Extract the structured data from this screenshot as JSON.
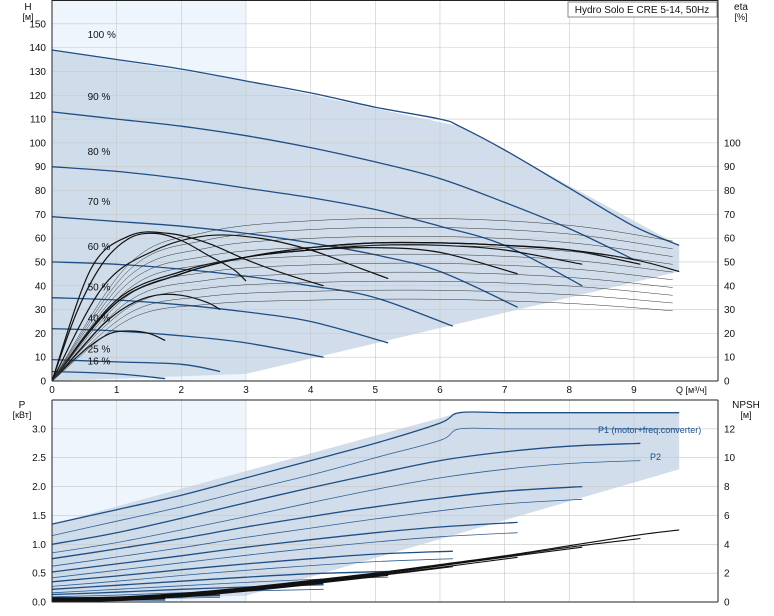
{
  "chart_data": [
    {
      "type": "line",
      "title": "Hydro Solo E CRE 5-14, 50Hz",
      "ylabel": "H",
      "yunit": "[м]",
      "xlabel": "Q [м³/ч]",
      "y2label": "eta",
      "y2unit": "[%]",
      "xlim": [
        0,
        10.3
      ],
      "ylim": [
        0,
        160
      ],
      "xticks": [
        0,
        1,
        2,
        3,
        4,
        5,
        6,
        7,
        8,
        9
      ],
      "yticks": [
        0,
        10,
        20,
        30,
        40,
        50,
        60,
        70,
        80,
        90,
        100,
        110,
        120,
        130,
        140,
        150
      ],
      "y2ticks": [
        0,
        10,
        20,
        30,
        40,
        50,
        60,
        70,
        80,
        90,
        100
      ],
      "grid": true,
      "speed_labels": [
        "100 %",
        "90 %",
        "80 %",
        "70 %",
        "60 %",
        "50 %",
        "40 %",
        "25 %",
        "16 %"
      ],
      "head_curves": [
        {
          "speed": "100 %",
          "x": [
            0,
            1,
            2,
            3,
            4,
            5,
            6,
            6.3,
            7,
            8,
            9,
            9.7
          ],
          "y": [
            139,
            135,
            131,
            126,
            121,
            115,
            110,
            107,
            97,
            81,
            65,
            57
          ]
        },
        {
          "speed": "90 %",
          "x": [
            0,
            1,
            2,
            3,
            4,
            5,
            6,
            7,
            8,
            9
          ],
          "y": [
            113,
            110,
            107,
            103,
            98,
            92,
            85,
            75,
            64,
            51
          ]
        },
        {
          "speed": "80 %",
          "x": [
            0,
            1,
            2,
            3,
            4,
            5,
            6,
            7,
            8.2
          ],
          "y": [
            90,
            88,
            85,
            81,
            77,
            72,
            65,
            57,
            40
          ]
        },
        {
          "speed": "70 %",
          "x": [
            0,
            1,
            2,
            3,
            4,
            5,
            6,
            7.2
          ],
          "y": [
            69,
            67,
            65,
            62,
            58,
            53,
            46,
            31
          ]
        },
        {
          "speed": "60 %",
          "x": [
            0,
            1,
            2,
            3,
            4,
            5,
            6.2
          ],
          "y": [
            50,
            49,
            47,
            44,
            40,
            35,
            23
          ]
        },
        {
          "speed": "50 %",
          "x": [
            0,
            1,
            2,
            3,
            4,
            5.2
          ],
          "y": [
            35,
            34,
            32,
            29,
            25,
            16
          ]
        },
        {
          "speed": "40 %",
          "x": [
            0,
            1,
            2,
            3,
            4.2
          ],
          "y": [
            22,
            21,
            19,
            16,
            10
          ]
        },
        {
          "speed": "25 %",
          "x": [
            0,
            1,
            2,
            2.6
          ],
          "y": [
            9,
            8,
            7,
            4
          ]
        },
        {
          "speed": "16 %",
          "x": [
            0,
            1,
            1.75
          ],
          "y": [
            4,
            3,
            1
          ]
        }
      ],
      "efficiency_curves": [
        {
          "x": [
            0,
            1,
            2,
            3,
            4,
            5,
            6,
            7,
            8,
            9,
            9.7
          ],
          "y": [
            0,
            33,
            45,
            52,
            56,
            58,
            58,
            57,
            55,
            51,
            46
          ]
        },
        {
          "x": [
            0,
            1,
            2,
            3,
            4,
            5,
            6,
            7,
            8,
            9.1
          ],
          "y": [
            0,
            33,
            45,
            52,
            56,
            58,
            58,
            57,
            55,
            49
          ]
        },
        {
          "x": [
            0,
            1,
            2,
            3,
            4,
            5,
            6,
            7,
            8.2
          ],
          "y": [
            0,
            33,
            45,
            52,
            55,
            57,
            57,
            55,
            49
          ]
        },
        {
          "x": [
            0,
            1,
            2,
            3,
            4,
            5,
            6,
            7.2
          ],
          "y": [
            0,
            34,
            46,
            52,
            55,
            56,
            54,
            45
          ]
        },
        {
          "x": [
            0,
            0.8,
            1.6,
            2.4,
            3.2,
            4,
            4.8,
            5.2
          ],
          "y": [
            0,
            40,
            55,
            61,
            60,
            55,
            47,
            43
          ]
        },
        {
          "x": [
            0,
            0.6,
            1.2,
            1.8,
            2.4,
            3,
            3.6,
            4.2
          ],
          "y": [
            0,
            47,
            61,
            62,
            58,
            51,
            45,
            40
          ]
        },
        {
          "x": [
            0,
            0.4,
            0.8,
            1.2,
            1.6,
            2.0,
            2.4,
            2.8,
            3.0
          ],
          "y": [
            0,
            30,
            50,
            60,
            62,
            59,
            53,
            47,
            42
          ]
        },
        {
          "x": [
            0,
            0.4,
            0.8,
            1.2,
            1.6,
            2.0,
            2.4,
            2.6
          ],
          "y": [
            0,
            12,
            24,
            32,
            36,
            36,
            33,
            30
          ]
        },
        {
          "x": [
            0,
            0.3,
            0.6,
            0.9,
            1.2,
            1.5,
            1.75
          ],
          "y": [
            0,
            8,
            15,
            20,
            21,
            20,
            17
          ]
        }
      ],
      "envelope": {
        "x": [
          0,
          3,
          6.3,
          9.7,
          9.7,
          3,
          0
        ],
        "y": [
          139,
          126,
          107,
          57,
          46,
          3,
          0
        ]
      }
    },
    {
      "type": "line",
      "ylabel": "P",
      "yunit": "[кВт]",
      "y2label": "NPSH",
      "y2unit": "[м]",
      "xlim": [
        0,
        10.3
      ],
      "ylim": [
        0,
        3.5
      ],
      "yticks": [
        0,
        0.5,
        1.0,
        1.5,
        2.0,
        2.5,
        3.0
      ],
      "ytick_labels": [
        "0.0",
        "0.5",
        "1.0",
        "1.5",
        "2.0",
        "2.5",
        "3.0"
      ],
      "y2lim": [
        0,
        14
      ],
      "y2ticks": [
        0,
        2,
        4,
        6,
        8,
        10,
        12
      ],
      "grid": true,
      "annotations": [
        "P1 (motor+freq.converter)",
        "P2"
      ],
      "power_curves_p1": [
        {
          "x": [
            0,
            1,
            2,
            3,
            4,
            5,
            6,
            6.3,
            7,
            8,
            9,
            9.7
          ],
          "y": [
            1.35,
            1.6,
            1.85,
            2.15,
            2.45,
            2.75,
            3.1,
            3.28,
            3.28,
            3.28,
            3.28,
            3.28
          ]
        },
        {
          "x": [
            0,
            1,
            2,
            3,
            4,
            5,
            6,
            7,
            8,
            9.1
          ],
          "y": [
            1.0,
            1.2,
            1.45,
            1.72,
            1.98,
            2.22,
            2.45,
            2.6,
            2.7,
            2.75
          ]
        },
        {
          "x": [
            0,
            1,
            2,
            3,
            4,
            5,
            6,
            7,
            8.2
          ],
          "y": [
            0.75,
            0.92,
            1.1,
            1.3,
            1.48,
            1.65,
            1.8,
            1.92,
            2.0
          ]
        },
        {
          "x": [
            0,
            1,
            2,
            3,
            4,
            5,
            6,
            7.2
          ],
          "y": [
            0.52,
            0.66,
            0.8,
            0.95,
            1.08,
            1.2,
            1.3,
            1.38
          ]
        },
        {
          "x": [
            0,
            1,
            2,
            3,
            4,
            5,
            6.2
          ],
          "y": [
            0.35,
            0.45,
            0.56,
            0.66,
            0.75,
            0.83,
            0.88
          ]
        },
        {
          "x": [
            0,
            1,
            2,
            3,
            4,
            5.2
          ],
          "y": [
            0.22,
            0.29,
            0.36,
            0.43,
            0.49,
            0.53
          ]
        },
        {
          "x": [
            0,
            1,
            2,
            3,
            4.2
          ],
          "y": [
            0.13,
            0.17,
            0.22,
            0.26,
            0.3
          ]
        },
        {
          "x": [
            0,
            1,
            2,
            2.6
          ],
          "y": [
            0.06,
            0.08,
            0.1,
            0.11
          ]
        },
        {
          "x": [
            0,
            1,
            1.75
          ],
          "y": [
            0.03,
            0.04,
            0.05
          ]
        }
      ],
      "power_curves_p2": [
        {
          "x": [
            0,
            1,
            2,
            3,
            4,
            5,
            6,
            6.3,
            7,
            8,
            9,
            9.7
          ],
          "y": [
            1.15,
            1.4,
            1.65,
            1.93,
            2.2,
            2.5,
            2.8,
            3.0,
            3.0,
            3.0,
            3.0,
            3.0
          ]
        },
        {
          "x": [
            0,
            1,
            2,
            3,
            4,
            5,
            6,
            7,
            8,
            9.1
          ],
          "y": [
            0.85,
            1.03,
            1.25,
            1.48,
            1.72,
            1.95,
            2.15,
            2.3,
            2.4,
            2.45
          ]
        },
        {
          "x": [
            0,
            1,
            2,
            3,
            4,
            5,
            6,
            7,
            8.2
          ],
          "y": [
            0.62,
            0.78,
            0.94,
            1.12,
            1.28,
            1.44,
            1.58,
            1.7,
            1.78
          ]
        },
        {
          "x": [
            0,
            1,
            2,
            3,
            4,
            5,
            6,
            7.2
          ],
          "y": [
            0.42,
            0.55,
            0.68,
            0.81,
            0.93,
            1.04,
            1.13,
            1.2
          ]
        },
        {
          "x": [
            0,
            1,
            2,
            3,
            4,
            5,
            6.2
          ],
          "y": [
            0.27,
            0.36,
            0.46,
            0.55,
            0.63,
            0.7,
            0.75
          ]
        },
        {
          "x": [
            0,
            1,
            2,
            3,
            4,
            5.2
          ],
          "y": [
            0.16,
            0.22,
            0.28,
            0.34,
            0.39,
            0.43
          ]
        },
        {
          "x": [
            0,
            1,
            2,
            3,
            4.2
          ],
          "y": [
            0.09,
            0.12,
            0.16,
            0.19,
            0.22
          ]
        },
        {
          "x": [
            0,
            1,
            2,
            2.6
          ],
          "y": [
            0.04,
            0.06,
            0.07,
            0.08
          ]
        },
        {
          "x": [
            0,
            1,
            1.75
          ],
          "y": [
            0.02,
            0.03,
            0.03
          ]
        }
      ],
      "npsh_curves": [
        {
          "x": [
            0,
            1,
            2,
            3,
            4,
            5,
            6,
            7,
            8,
            9,
            9.7
          ],
          "y": [
            0.3,
            0.35,
            0.6,
            1.0,
            1.5,
            2.0,
            2.6,
            3.2,
            3.9,
            4.6,
            5.0
          ]
        },
        {
          "x": [
            0,
            1,
            2,
            3,
            4,
            5,
            6,
            7,
            8,
            9.1
          ],
          "y": [
            0.25,
            0.3,
            0.55,
            0.95,
            1.45,
            1.95,
            2.55,
            3.15,
            3.8,
            4.4
          ]
        },
        {
          "x": [
            0,
            1,
            2,
            3,
            4,
            5,
            6,
            7,
            8.2
          ],
          "y": [
            0.2,
            0.28,
            0.5,
            0.9,
            1.4,
            1.9,
            2.5,
            3.1,
            3.8
          ]
        },
        {
          "x": [
            0,
            1,
            2,
            3,
            4,
            5,
            6,
            7.2
          ],
          "y": [
            0.15,
            0.25,
            0.45,
            0.85,
            1.35,
            1.85,
            2.4,
            3.1
          ]
        },
        {
          "x": [
            0,
            1,
            2,
            3,
            4,
            5,
            6.2
          ],
          "y": [
            0.1,
            0.22,
            0.42,
            0.8,
            1.3,
            1.8,
            2.45
          ]
        },
        {
          "x": [
            0,
            1,
            2,
            3,
            4,
            5.2
          ],
          "y": [
            0.08,
            0.2,
            0.4,
            0.78,
            1.25,
            1.85
          ]
        },
        {
          "x": [
            0,
            1,
            2,
            3,
            4.2
          ],
          "y": [
            0.05,
            0.18,
            0.38,
            0.75,
            1.3
          ]
        },
        {
          "x": [
            0,
            1,
            2,
            2.6
          ],
          "y": [
            0.03,
            0.15,
            0.35,
            0.55
          ]
        },
        {
          "x": [
            0,
            1,
            1.75
          ],
          "y": [
            0.02,
            0.1,
            0.25
          ]
        }
      ],
      "envelope_p1": {
        "x": [
          0,
          6.3,
          9.7,
          9.7,
          3,
          0
        ],
        "y": [
          1.35,
          3.28,
          3.28,
          2.3,
          0.11,
          0.03
        ]
      }
    }
  ]
}
